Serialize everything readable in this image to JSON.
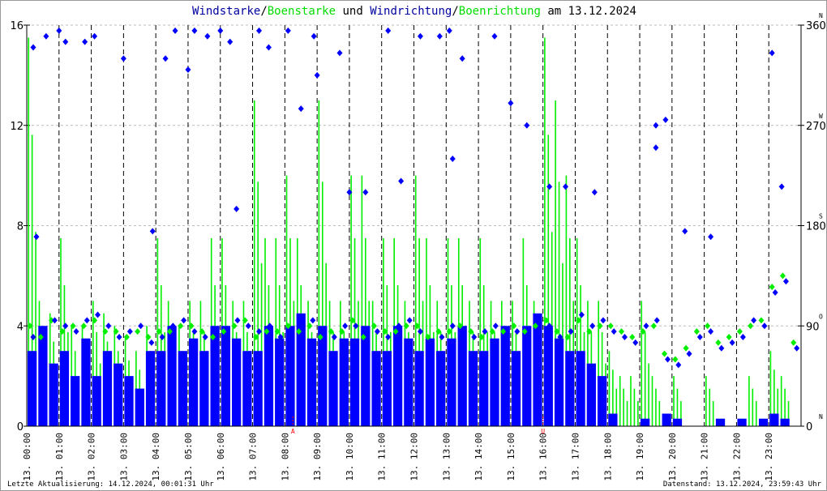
{
  "title": {
    "p1": "Windstarke",
    "s1": "/",
    "p2": "Boenstarke",
    "p3": " und ",
    "p4": "Windrichtung",
    "s2": "/",
    "p5": "Boenrichtung",
    "p6": " am 13.12.2024"
  },
  "footer": {
    "left": "Letzte Aktualisierung: 14.12.2024, 00:01:31 Uhr",
    "right": "Datenstand: 13.12.2024, 23:59:43 Uhr"
  },
  "colors": {
    "wind": "#0000ff",
    "gust": "#00ee00",
    "grid": "#bbbbbb",
    "marker": "#ff0000"
  },
  "chart_data": {
    "type": "bar+scatter",
    "title": "Windstarke/Boenstarke und Windrichtung/Boenrichtung am 13.12.2024",
    "ylim": [
      0,
      16
    ],
    "y_ticks": [
      "0",
      "4",
      "8",
      "12",
      "16"
    ],
    "y2lim": [
      0,
      360
    ],
    "y2_ticks": [
      "0",
      "90",
      "180",
      "270",
      "360"
    ],
    "y2_compass": [
      "N",
      "O",
      "S",
      "W",
      "N"
    ],
    "x_ticks": [
      "13. 00:00",
      "13. 01:00",
      "13. 02:00",
      "13. 03:00",
      "13. 04:00",
      "13. 05:00",
      "13. 06:00",
      "13. 07:00",
      "13. 08:00",
      "13. 09:00",
      "13. 10:00",
      "13. 11:00",
      "13. 12:00",
      "13. 13:00",
      "13. 14:00",
      "13. 15:00",
      "13. 16:00",
      "13. 17:00",
      "13. 18:00",
      "13. 19:00",
      "13. 20:00",
      "13. 21:00",
      "13. 22:00",
      "13. 23:00"
    ],
    "bin_minutes": 20,
    "series": [
      {
        "name": "Windstarke",
        "values": [
          3,
          4,
          2.5,
          3,
          2,
          3.5,
          2,
          3,
          2.5,
          2,
          1.5,
          3,
          3,
          4,
          3,
          3.5,
          3,
          4,
          4,
          3.5,
          3,
          3,
          4,
          3.5,
          4,
          4.5,
          3.5,
          4,
          3,
          3.5,
          3.5,
          4,
          3,
          3,
          4,
          3.5,
          3,
          3.5,
          3,
          3.5,
          4,
          3,
          3,
          3.5,
          4,
          3,
          4,
          4.5,
          4,
          3.5,
          3,
          3,
          2.5,
          2,
          0.5,
          0,
          0,
          0.3,
          0,
          0.5,
          0.3,
          0,
          0,
          0,
          0.3,
          0,
          0.3,
          0,
          0.3,
          0.5,
          0.3,
          0
        ]
      },
      {
        "name": "Boenstarke",
        "values": [
          15.5,
          5,
          4.5,
          7.5,
          4,
          4,
          5,
          4.5,
          4,
          3.5,
          3,
          4,
          7.5,
          5,
          4,
          5,
          5,
          7.5,
          7.5,
          5,
          5,
          13,
          7.5,
          7.5,
          10,
          7.5,
          5,
          13,
          5,
          5,
          10,
          10,
          5,
          7.5,
          7.5,
          5,
          10,
          7.5,
          5,
          7.5,
          7.5,
          5,
          7.5,
          5,
          5,
          5,
          7.5,
          5,
          15.5,
          13,
          10,
          7.5,
          5,
          5,
          3,
          2,
          2,
          5,
          2,
          0,
          2,
          0,
          0,
          2,
          0,
          0,
          0,
          2,
          0,
          3,
          2,
          0
        ]
      },
      {
        "name": "Windrichtung",
        "values": [
          80,
          75,
          95,
          90,
          85,
          95,
          100,
          90,
          80,
          85,
          90,
          75,
          80,
          90,
          95,
          85,
          80,
          75,
          80,
          95,
          90,
          85,
          90,
          80,
          85,
          90,
          95,
          85,
          80,
          90,
          90,
          75,
          85,
          80,
          90,
          95,
          85,
          75,
          80,
          90,
          85,
          80,
          85,
          90,
          80,
          85,
          80,
          95,
          90,
          80,
          85,
          100,
          90,
          95,
          85,
          80,
          75,
          90,
          95,
          60,
          55,
          65,
          80,
          85,
          70,
          75,
          80,
          95,
          90,
          120,
          130,
          70
        ]
      },
      {
        "name": "Boenrichtung",
        "values": [
          90,
          80,
          95,
          85,
          90,
          90,
          95,
          85,
          85,
          80,
          85,
          80,
          85,
          85,
          90,
          90,
          85,
          80,
          85,
          90,
          95,
          80,
          85,
          85,
          90,
          85,
          90,
          80,
          85,
          85,
          95,
          80,
          90,
          85,
          85,
          90,
          90,
          80,
          85,
          85,
          90,
          85,
          80,
          85,
          85,
          90,
          85,
          90,
          95,
          85,
          80,
          95,
          85,
          90,
          90,
          85,
          80,
          85,
          90,
          65,
          60,
          70,
          85,
          90,
          75,
          80,
          85,
          90,
          95,
          125,
          135,
          75
        ]
      }
    ],
    "direction_outliers": [
      [
        0.2,
        340
      ],
      [
        0.3,
        170
      ],
      [
        0.6,
        350
      ],
      [
        1.0,
        355
      ],
      [
        1.2,
        345
      ],
      [
        1.8,
        345
      ],
      [
        2.1,
        350
      ],
      [
        3.0,
        330
      ],
      [
        3.9,
        175
      ],
      [
        4.3,
        330
      ],
      [
        4.6,
        355
      ],
      [
        5.0,
        320
      ],
      [
        5.2,
        355
      ],
      [
        5.6,
        350
      ],
      [
        6.0,
        355
      ],
      [
        6.3,
        345
      ],
      [
        6.5,
        195
      ],
      [
        7.2,
        355
      ],
      [
        7.5,
        340
      ],
      [
        8.1,
        355
      ],
      [
        8.5,
        285
      ],
      [
        8.9,
        350
      ],
      [
        9.0,
        315
      ],
      [
        9.7,
        335
      ],
      [
        10.0,
        210
      ],
      [
        10.5,
        210
      ],
      [
        11.2,
        355
      ],
      [
        11.6,
        220
      ],
      [
        12.2,
        350
      ],
      [
        12.8,
        350
      ],
      [
        13.1,
        355
      ],
      [
        13.5,
        330
      ],
      [
        13.2,
        240
      ],
      [
        14.5,
        350
      ],
      [
        15.0,
        290
      ],
      [
        15.5,
        270
      ],
      [
        16.2,
        215
      ],
      [
        16.7,
        215
      ],
      [
        17.6,
        210
      ],
      [
        19.5,
        270
      ],
      [
        19.8,
        275
      ],
      [
        19.5,
        250
      ],
      [
        20.4,
        175
      ],
      [
        21.2,
        170
      ],
      [
        23.1,
        335
      ],
      [
        23.4,
        215
      ]
    ],
    "markers": [
      {
        "hour": 8.25,
        "label": "A"
      },
      {
        "hour": 16.0,
        "label": "U"
      }
    ]
  }
}
